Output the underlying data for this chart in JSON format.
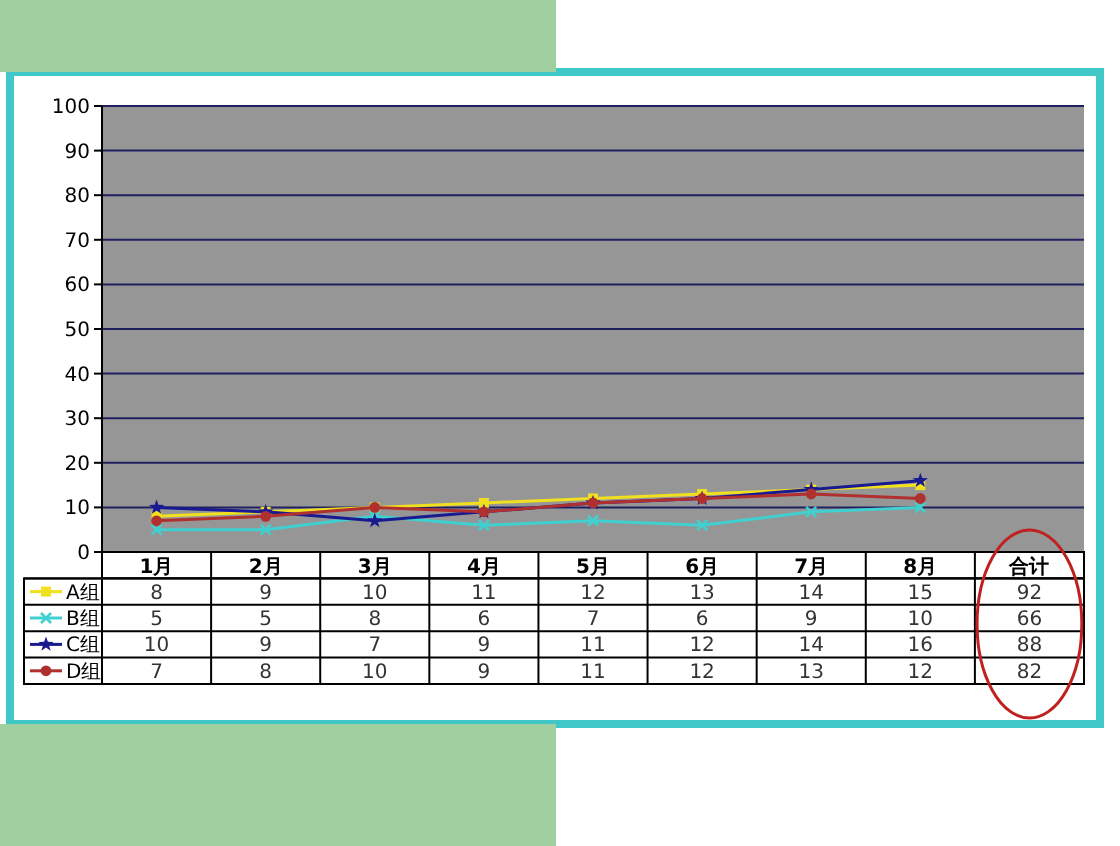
{
  "chart_data": {
    "type": "line",
    "categories": [
      "1月",
      "2月",
      "3月",
      "4月",
      "5月",
      "6月",
      "7月",
      "8月",
      "合计"
    ],
    "series": [
      {
        "name": "A组",
        "color": "#f0e020",
        "marker": "square",
        "values": [
          8,
          9,
          10,
          11,
          12,
          13,
          14,
          15,
          null
        ],
        "value_labels": [
          "8",
          "9",
          "10",
          "11",
          "12",
          "13",
          "14",
          "15",
          "92"
        ]
      },
      {
        "name": "B组",
        "color": "#40d0d0",
        "marker": "cross",
        "values": [
          5,
          5,
          8,
          6,
          7,
          6,
          9,
          10,
          null
        ],
        "value_labels": [
          "5",
          "5",
          "8",
          "6",
          "7",
          "6",
          "9",
          "10",
          "66"
        ]
      },
      {
        "name": "C组",
        "color": "#1a1a90",
        "marker": "star",
        "values": [
          10,
          9,
          7,
          9,
          11,
          12,
          14,
          16,
          null
        ],
        "value_labels": [
          "10",
          "9",
          "7",
          "9",
          "11",
          "12",
          "14",
          "16",
          "88"
        ]
      },
      {
        "name": "D组",
        "color": "#b03030",
        "marker": "circle",
        "values": [
          7,
          8,
          10,
          9,
          11,
          12,
          13,
          12,
          null
        ],
        "value_labels": [
          "7",
          "8",
          "10",
          "9",
          "11",
          "12",
          "13",
          "12",
          "82"
        ]
      }
    ],
    "ylim": [
      0,
      100
    ],
    "yticks": [
      0,
      10,
      20,
      30,
      40,
      50,
      60,
      70,
      80,
      90,
      100
    ],
    "grid": "y",
    "legend": "bottom"
  }
}
